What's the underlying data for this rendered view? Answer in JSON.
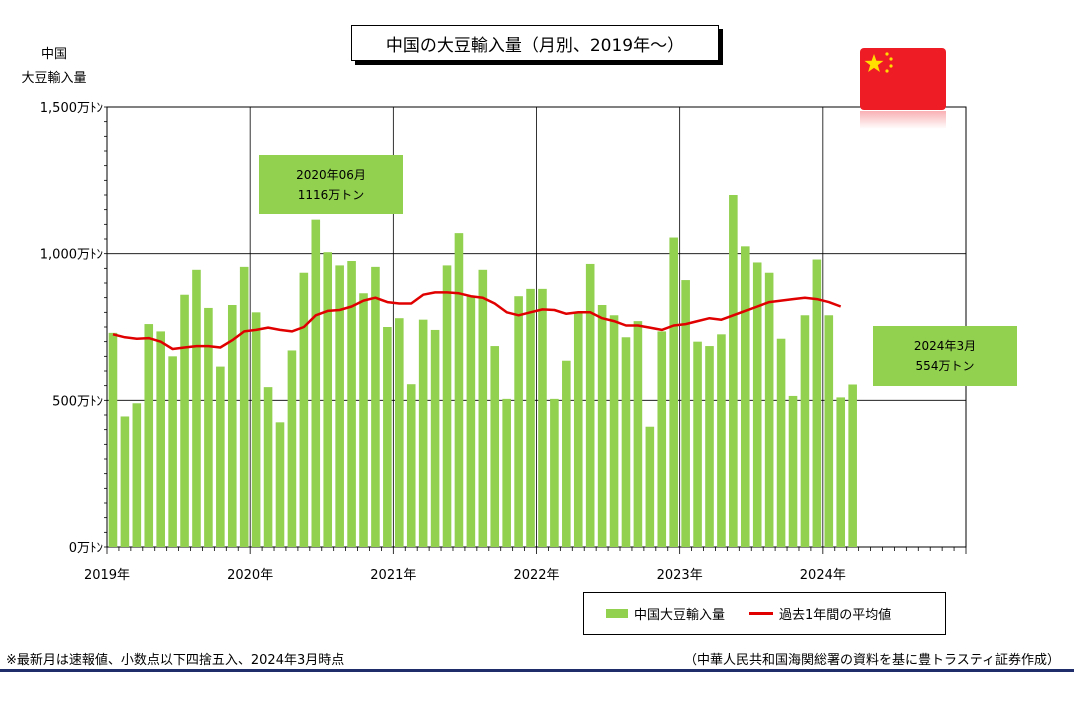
{
  "chart_data": {
    "type": "bar",
    "title": "中国の大豆輸入量（月別、2019年～）",
    "ylabel_lines": [
      "中国",
      "大豆輸入量"
    ],
    "y_ticks": [
      {
        "value": 0,
        "label": "0万ﾄﾝ"
      },
      {
        "value": 500,
        "label": "500万ﾄﾝ"
      },
      {
        "value": 1000,
        "label": "1,000万ﾄﾝ"
      },
      {
        "value": 1500,
        "label": "1,500万ﾄﾝ"
      }
    ],
    "ylim": [
      0,
      1500
    ],
    "x_ticks": [
      "2019年",
      "2020年",
      "2021年",
      "2022年",
      "2023年",
      "2024年"
    ],
    "months_total": 72,
    "grid": true,
    "legend_placement": "bottom-right",
    "series": [
      {
        "name": "中国大豆輸入量",
        "type": "bar",
        "color": "#92d050",
        "values": [
          730,
          445,
          490,
          760,
          735,
          650,
          860,
          945,
          815,
          615,
          825,
          955,
          800,
          545,
          425,
          670,
          935,
          1116,
          1005,
          960,
          975,
          865,
          955,
          750,
          780,
          555,
          775,
          740,
          960,
          1070,
          855,
          945,
          685,
          505,
          855,
          880,
          880,
          505,
          635,
          800,
          965,
          825,
          790,
          715,
          770,
          410,
          735,
          1055,
          910,
          700,
          685,
          725,
          1200,
          1025,
          970,
          935,
          710,
          515,
          790,
          980,
          790,
          510,
          554
        ]
      },
      {
        "name": "過去1年間の平均値",
        "type": "line",
        "color": "#e00000",
        "values": [
          725,
          715,
          710,
          712,
          700,
          675,
          680,
          685,
          685,
          680,
          705,
          735,
          740,
          748,
          740,
          735,
          750,
          790,
          805,
          808,
          820,
          840,
          850,
          835,
          830,
          830,
          860,
          868,
          868,
          865,
          855,
          850,
          830,
          800,
          790,
          800,
          810,
          808,
          795,
          800,
          800,
          780,
          770,
          755,
          755,
          748,
          740,
          755,
          760,
          770,
          780,
          775,
          790,
          805,
          820,
          835,
          840,
          845,
          850,
          845,
          835,
          820
        ]
      }
    ],
    "annotations": [
      {
        "lines": [
          "2020年06月",
          "1116万トン"
        ]
      },
      {
        "lines": [
          "2024年3月",
          "554万トン"
        ]
      }
    ]
  },
  "footnote": "※最新月は速報値、小数点以下四捨五入、2024年3月時点",
  "source": "（中華人民共和国海関総署の資料を基に豊トラスティ証券作成）",
  "flag_icon": "china-flag-icon"
}
